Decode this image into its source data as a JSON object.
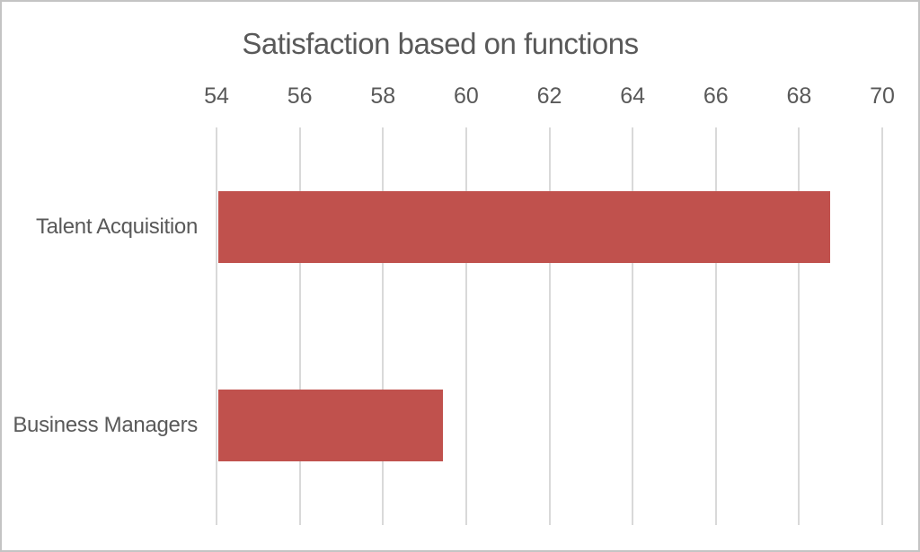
{
  "chart_data": {
    "type": "bar",
    "orientation": "horizontal",
    "title": "Satisfaction based on functions",
    "categories": [
      "Talent Acquisition",
      "Business Managers"
    ],
    "values": [
      68.7,
      59.4
    ],
    "xlim": [
      54,
      70
    ],
    "x_ticks": [
      54,
      56,
      58,
      60,
      62,
      64,
      66,
      68,
      70
    ],
    "x_tick_position": "top",
    "grid": true,
    "legend": false,
    "xlabel": "",
    "ylabel": ""
  },
  "colors": {
    "bar": "#c0514d",
    "gridline": "#d9d9d9",
    "text": "#595959",
    "page_border": "#c4c4c4",
    "background": "#ffffff"
  }
}
